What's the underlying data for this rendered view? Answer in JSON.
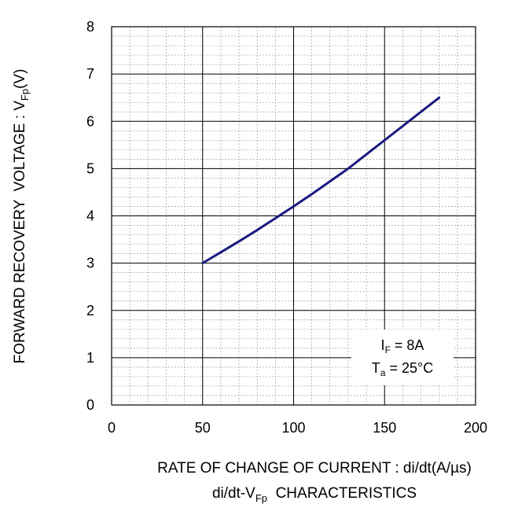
{
  "chart_data": {
    "type": "line",
    "title": "di/dt-V",
    "title_sub": "Fp",
    "title_suffix": "  CHARACTERISTICS",
    "xlabel": "RATE OF CHANGE OF CURRENT : di/dt(A/µs)",
    "ylabel": "FORWARD RECOVERY  VOLTAGE : V",
    "ylabel_sub": "Fp",
    "ylabel_suffix": "(V)",
    "xlim": [
      0,
      200
    ],
    "ylim": [
      0,
      8
    ],
    "x_ticks": [
      0,
      50,
      100,
      150,
      200
    ],
    "y_ticks": [
      0,
      1,
      2,
      3,
      4,
      5,
      6,
      7,
      8
    ],
    "x_tick_labels": [
      "0",
      "50",
      "100",
      "150",
      "200"
    ],
    "y_tick_labels": [
      "0",
      "1",
      "2",
      "3",
      "4",
      "5",
      "6",
      "7",
      "8"
    ],
    "grid": true,
    "series": [
      {
        "color": "#1a1a80",
        "x": [
          50,
          60,
          70,
          80,
          90,
          100,
          110,
          120,
          130,
          140,
          150,
          160,
          170,
          180
        ],
        "values": [
          3.0,
          3.23,
          3.46,
          3.7,
          3.95,
          4.2,
          4.46,
          4.73,
          5.0,
          5.3,
          5.6,
          5.9,
          6.2,
          6.5
        ]
      }
    ],
    "annotation": {
      "line1_main": "I",
      "line1_sub": "F",
      "line1_rest": " = 8A",
      "line2_main": "T",
      "line2_sub": "a",
      "line2_rest": " = 25°C"
    }
  }
}
